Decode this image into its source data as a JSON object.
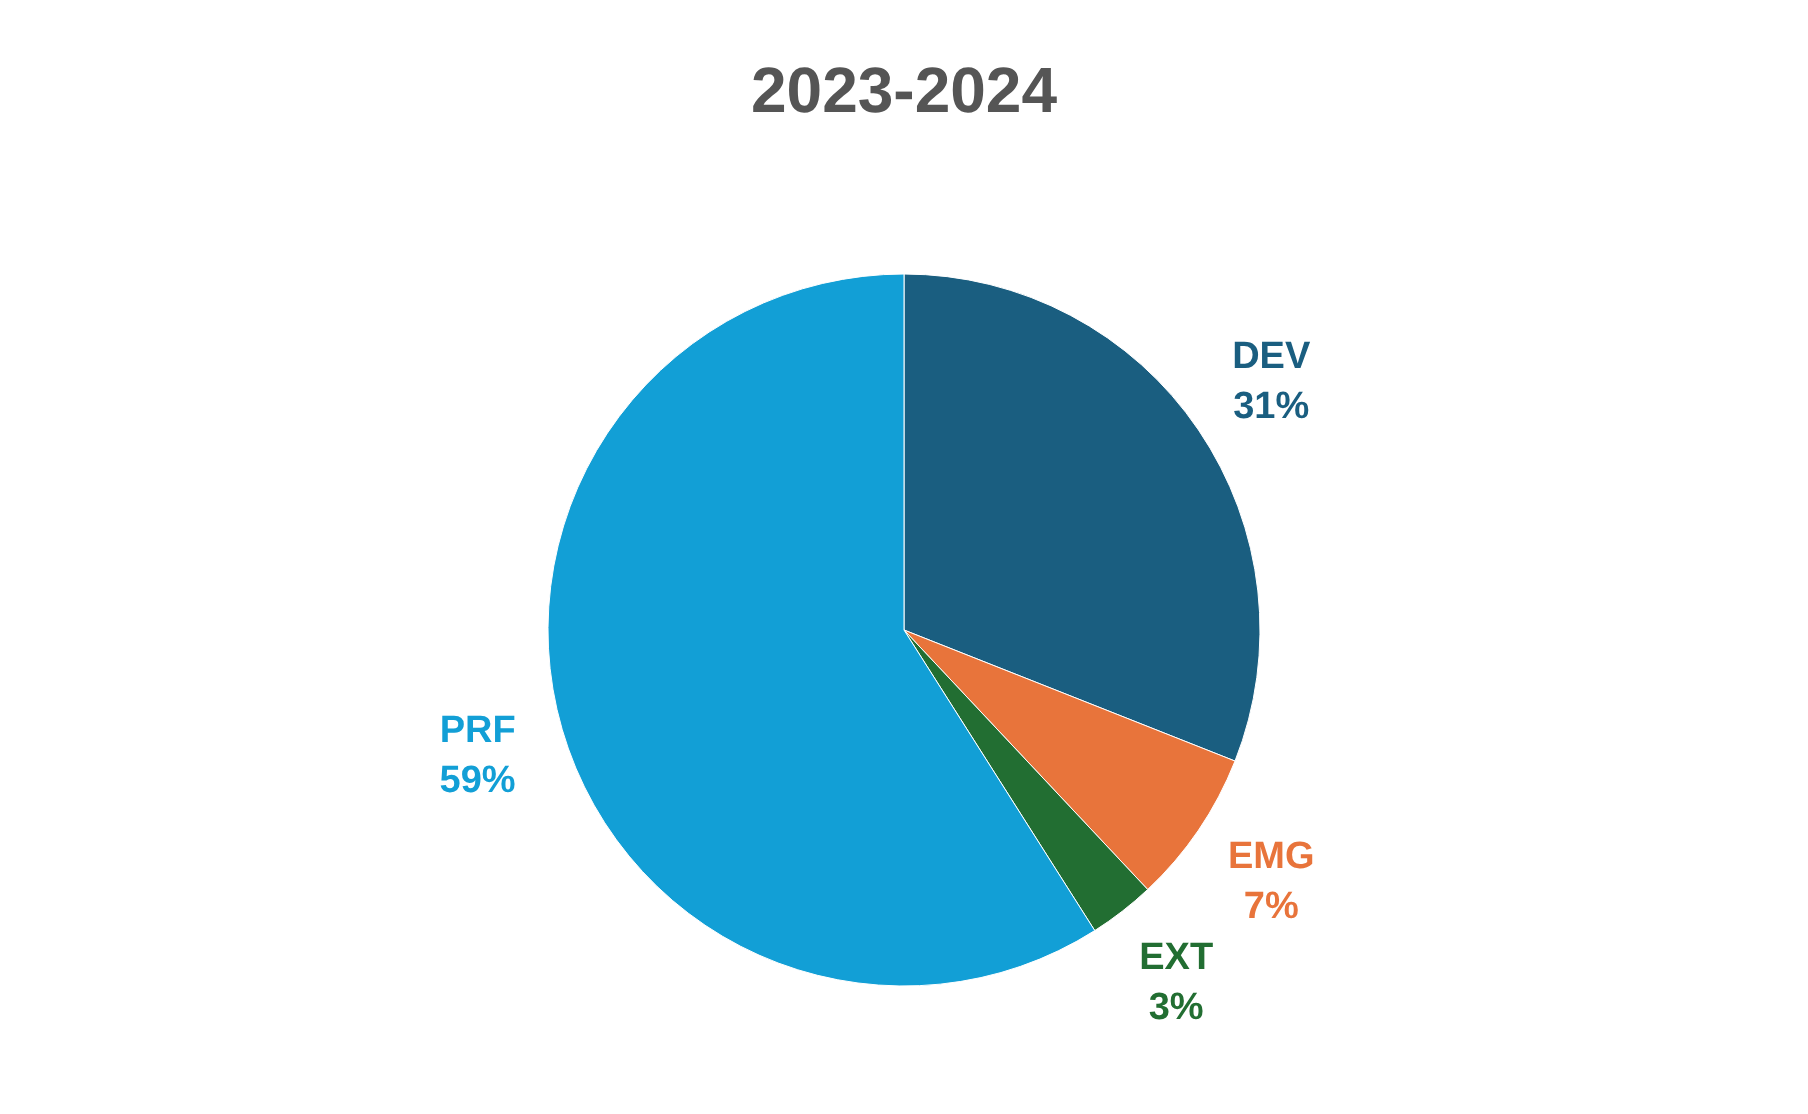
{
  "chart_data": {
    "type": "pie",
    "title": "2023-2024",
    "categories": [
      "DEV",
      "EMG",
      "EXT",
      "PRF"
    ],
    "values": [
      31,
      7,
      3,
      59
    ],
    "colors": [
      "#1a5e80",
      "#e8743b",
      "#226e32",
      "#129fd6"
    ],
    "value_labels": [
      "31%",
      "7%",
      "3%",
      "59%"
    ]
  }
}
